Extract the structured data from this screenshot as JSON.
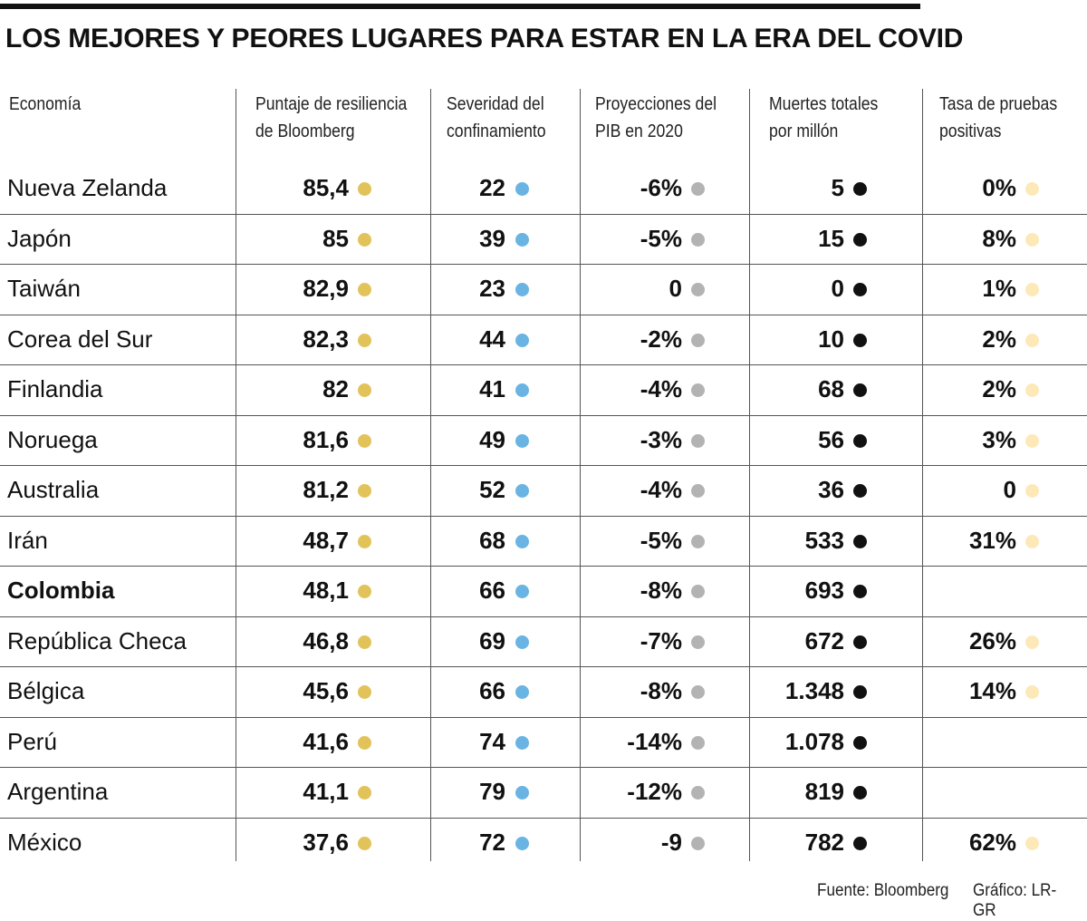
{
  "title": "LOS MEJORES Y PEORES LUGARES PARA ESTAR EN LA ERA DEL COVID",
  "colors": {
    "resiliencia": "#e2c35a",
    "confinamiento": "#6ab4e3",
    "pib": "#b3b3b3",
    "muertes": "#111111",
    "pruebas": "#fde9b8"
  },
  "headers": {
    "economia": "Economía",
    "resiliencia_1": "Puntaje de resiliencia",
    "resiliencia_2": "de Bloomberg",
    "confinamiento_1": "Severidad del",
    "confinamiento_2": "confinamiento",
    "pib_1": "Proyecciones del",
    "pib_2": "PIB en 2020",
    "muertes_1": "Muertes totales",
    "muertes_2": "por millón",
    "pruebas_1": "Tasa de pruebas",
    "pruebas_2": "positivas"
  },
  "rows": [
    {
      "country": "Nueva Zelanda",
      "resiliencia": "85,4",
      "confinamiento": "22",
      "pib": "-6%",
      "muertes": "5",
      "pruebas": "0%"
    },
    {
      "country": "Japón",
      "resiliencia": "85",
      "confinamiento": "39",
      "pib": "-5%",
      "muertes": "15",
      "pruebas": "8%"
    },
    {
      "country": "Taiwán",
      "resiliencia": "82,9",
      "confinamiento": "23",
      "pib": "0",
      "muertes": "0",
      "pruebas": "1%"
    },
    {
      "country": "Corea del Sur",
      "resiliencia": "82,3",
      "confinamiento": "44",
      "pib": "-2%",
      "muertes": "10",
      "pruebas": "2%"
    },
    {
      "country": "Finlandia",
      "resiliencia": "82",
      "confinamiento": "41",
      "pib": "-4%",
      "muertes": "68",
      "pruebas": "2%"
    },
    {
      "country": "Noruega",
      "resiliencia": "81,6",
      "confinamiento": "49",
      "pib": "-3%",
      "muertes": "56",
      "pruebas": "3%"
    },
    {
      "country": "Australia",
      "resiliencia": "81,2",
      "confinamiento": "52",
      "pib": "-4%",
      "muertes": "36",
      "pruebas": "0"
    },
    {
      "country": "Irán",
      "resiliencia": "48,7",
      "confinamiento": "68",
      "pib": "-5%",
      "muertes": "533",
      "pruebas": "31%"
    },
    {
      "country": "Colombia",
      "bold": true,
      "resiliencia": "48,1",
      "confinamiento": "66",
      "pib": "-8%",
      "muertes": "693",
      "pruebas": ""
    },
    {
      "country": "República Checa",
      "resiliencia": "46,8",
      "confinamiento": "69",
      "pib": "-7%",
      "muertes": "672",
      "pruebas": "26%"
    },
    {
      "country": "Bélgica",
      "resiliencia": "45,6",
      "confinamiento": "66",
      "pib": "-8%",
      "muertes": "1.348",
      "pruebas": "14%"
    },
    {
      "country": "Perú",
      "resiliencia": "41,6",
      "confinamiento": "74",
      "pib": "-14%",
      "muertes": "1.078",
      "pruebas": ""
    },
    {
      "country": "Argentina",
      "resiliencia": "41,1",
      "confinamiento": "79",
      "pib": "-12%",
      "muertes": "819",
      "pruebas": ""
    },
    {
      "country": "México",
      "resiliencia": "37,6",
      "confinamiento": "72",
      "pib": "-9",
      "muertes": "782",
      "pruebas": "62%"
    }
  ],
  "footer": {
    "source": "Fuente: Bloomberg",
    "credit": "Gráfico: LR-GR"
  }
}
